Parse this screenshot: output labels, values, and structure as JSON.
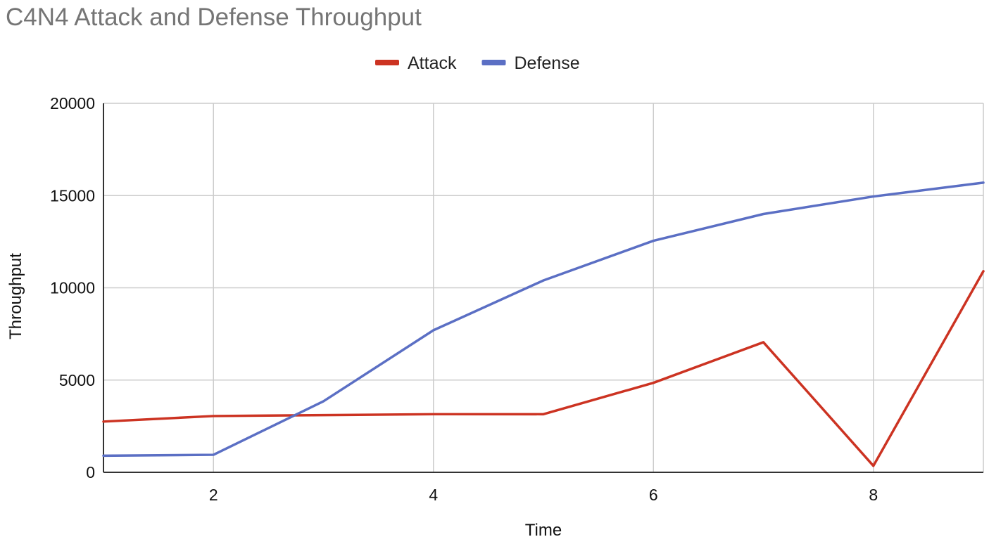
{
  "chart_data": {
    "type": "line",
    "title": "C4N4 Attack and Defense Throughput",
    "xlabel": "Time",
    "ylabel": "Throughput",
    "x": [
      1,
      2,
      3,
      4,
      5,
      6,
      7,
      8,
      9
    ],
    "xlim": [
      1,
      9
    ],
    "ylim": [
      0,
      20000
    ],
    "xticks": [
      2,
      4,
      6,
      8
    ],
    "xtick_labels": [
      "2",
      "4",
      "6",
      "8"
    ],
    "yticks": [
      0,
      5000,
      10000,
      15000,
      20000
    ],
    "ytick_labels": [
      "0",
      "5000",
      "10000",
      "15000",
      "20000"
    ],
    "grid": true,
    "legend_position": "top-center",
    "series": [
      {
        "name": "Attack",
        "color": "#cc3322",
        "values": [
          2750,
          3050,
          3100,
          3150,
          3150,
          4850,
          7050,
          350,
          10900
        ]
      },
      {
        "name": "Defense",
        "color": "#5b6fc4",
        "values": [
          900,
          950,
          3850,
          7700,
          10400,
          12550,
          14000,
          14950,
          15700
        ]
      }
    ]
  }
}
